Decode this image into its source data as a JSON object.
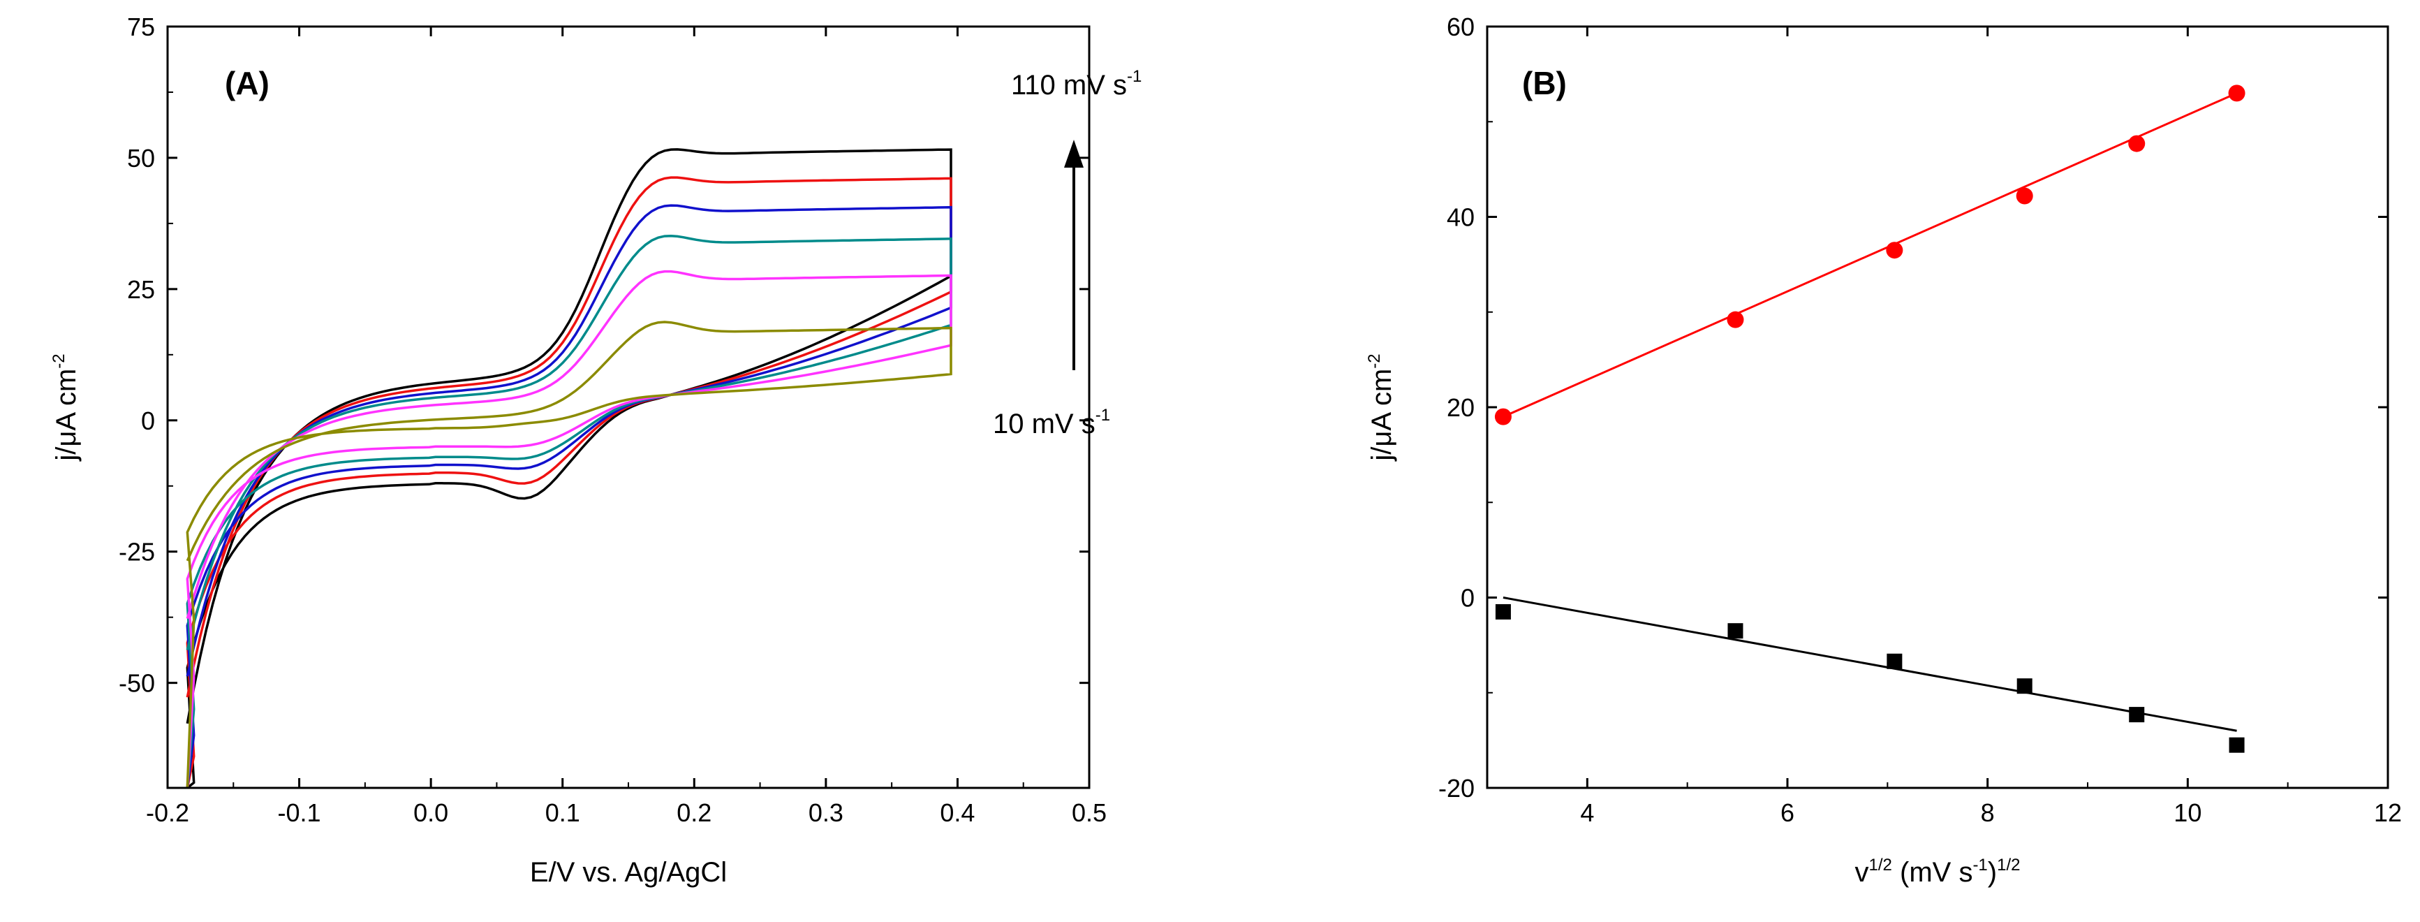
{
  "chart_data": [
    {
      "type": "line",
      "panel_label": "(A)",
      "xlabel": "E/V vs. Ag/AgCl",
      "ylabel": {
        "main": "j/",
        "mu": "μ",
        "unit": "A cm",
        "exp": "-2"
      },
      "xlim": [
        -0.2,
        0.5
      ],
      "ylim": [
        -70,
        75
      ],
      "x_ticks": [
        -0.2,
        -0.1,
        0.0,
        0.1,
        0.2,
        0.3,
        0.4,
        0.5
      ],
      "y_ticks": [
        -50,
        -25,
        0,
        25,
        50,
        75
      ],
      "x_tick_labels": [
        "-0.2",
        "-0.1",
        "0.0",
        "0.1",
        "0.2",
        "0.3",
        "0.4",
        "0.5"
      ],
      "y_tick_labels": [
        "-50",
        "-25",
        "0",
        "25",
        "50",
        "75"
      ],
      "annotations": {
        "top_main": "110 mV s",
        "top_exp": "-1",
        "bottom_main": "10 mV s",
        "bottom_exp": "-1"
      },
      "series": [
        {
          "color": "#000000",
          "ipa": 53,
          "ipc": -16,
          "plat_a": 50,
          "plat_c": -12,
          "start": -57,
          "low_a": 8,
          "low_c": -18
        },
        {
          "color": "#ee1111",
          "ipa": 47.5,
          "ipc": -13,
          "plat_a": 44.5,
          "plat_c": -10,
          "start": -52,
          "low_a": 7,
          "low_c": -16
        },
        {
          "color": "#1111cc",
          "ipa": 42,
          "ipc": -10,
          "plat_a": 39,
          "plat_c": -8.5,
          "start": -48,
          "low_a": 6,
          "low_c": -14
        },
        {
          "color": "#008b8b",
          "ipa": 36,
          "ipc": -8,
          "plat_a": 33,
          "plat_c": -7,
          "start": -43,
          "low_a": 5,
          "low_c": -12
        },
        {
          "color": "#ff33ff",
          "ipa": 29,
          "ipc": -5.5,
          "plat_a": 26,
          "plat_c": -5,
          "start": -37,
          "low_a": 3.5,
          "low_c": -9
        },
        {
          "color": "#8b8b00",
          "ipa": 19,
          "ipc": -1,
          "plat_a": 16,
          "plat_c": -1.5,
          "start": -26,
          "low_a": 0.5,
          "low_c": -4
        }
      ]
    },
    {
      "type": "scatter",
      "panel_label": "(B)",
      "xlabel": {
        "v": "v",
        "v_exp": "1/2",
        "mid": " (mV s",
        "mid_exp": "-1",
        "close": ")",
        "close_exp": "1/2"
      },
      "ylabel": {
        "main": "j/",
        "mu": "μ",
        "unit": "A cm",
        "exp": "-2"
      },
      "xlim": [
        3,
        12
      ],
      "ylim": [
        -20,
        60
      ],
      "x_ticks": [
        4,
        6,
        8,
        10,
        12
      ],
      "y_ticks": [
        -20,
        0,
        20,
        40,
        60
      ],
      "x_tick_labels": [
        "4",
        "6",
        "8",
        "10",
        "12"
      ],
      "y_tick_labels": [
        "-20",
        "0",
        "20",
        "40",
        "60"
      ],
      "x": [
        3.16,
        5.48,
        7.07,
        8.37,
        9.49,
        10.49
      ],
      "series": [
        {
          "marker": "circle",
          "color": "#ff0000",
          "values": [
            19,
            29.2,
            36.5,
            42.2,
            47.7,
            53
          ],
          "fit": [
            [
              3.16,
              19
            ],
            [
              10.49,
              53
            ]
          ]
        },
        {
          "marker": "square",
          "color": "#000000",
          "values": [
            -1.5,
            -3.5,
            -6.7,
            -9.3,
            -12.3,
            -15.5
          ],
          "fit": [
            [
              3.16,
              0
            ],
            [
              10.49,
              -14
            ]
          ]
        }
      ]
    }
  ]
}
